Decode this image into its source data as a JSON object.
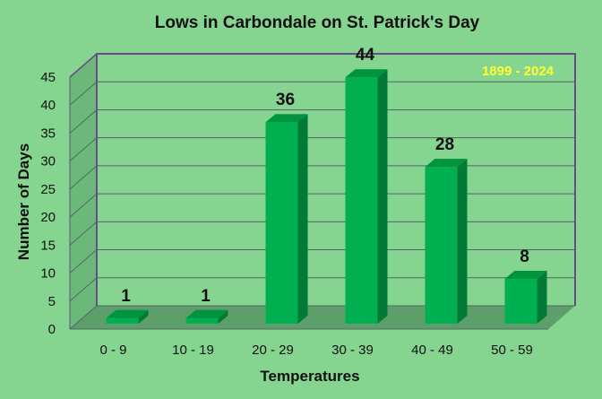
{
  "chart_data": {
    "type": "bar",
    "title": "Lows in Carbondale on St. Patrick's Day",
    "annotation": "1899 - 2024",
    "xlabel": "Temperatures",
    "ylabel": "Number of Days",
    "categories": [
      "0 - 9",
      "10 - 19",
      "20 - 29",
      "30 - 39",
      "40 - 49",
      "50 - 59"
    ],
    "values": [
      1,
      1,
      36,
      44,
      28,
      8
    ],
    "ylim": [
      0,
      45
    ],
    "yticks": [
      0,
      5,
      10,
      15,
      20,
      25,
      30,
      35,
      40,
      45
    ],
    "grid": true,
    "legend": "none",
    "colors": {
      "background": "#85d48f",
      "bar_front": "#00b050",
      "bar_side": "#007a36",
      "bar_top": "#00943f",
      "wall": "#6cb87a",
      "floor": "#5e9e6a",
      "frame": "#6a4a8a",
      "grid": "#4e6a63",
      "annotation": "#ffff33"
    }
  }
}
